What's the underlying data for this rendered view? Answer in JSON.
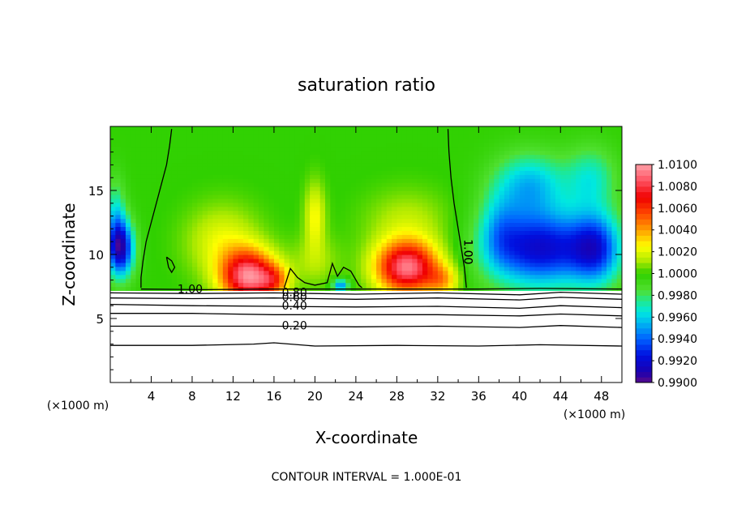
{
  "chart_data": {
    "type": "heatmap",
    "title": "saturation ratio",
    "xlabel": "X-coordinate",
    "ylabel": "Z-coordinate",
    "x_unit_left": "(×1000 m)",
    "x_unit_right": "(×1000 m)",
    "xlim": [
      0,
      50
    ],
    "ylim": [
      0,
      20
    ],
    "x_ticks": [
      4,
      8,
      12,
      16,
      20,
      24,
      28,
      32,
      36,
      40,
      44,
      48
    ],
    "x_tick_labels": [
      "4",
      "8",
      "12",
      "16",
      "20",
      "24",
      "28",
      "32",
      "36",
      "40",
      "44",
      "48"
    ],
    "y_ticks": [
      5,
      10,
      15
    ],
    "y_tick_labels": [
      "5",
      "10",
      "15"
    ],
    "colorbar": {
      "min": 0.99,
      "max": 1.01,
      "labels": [
        "1.0100",
        "1.0080",
        "1.0060",
        "1.0040",
        "1.0020",
        "1.0000",
        "0.9980",
        "0.9960",
        "0.9940",
        "0.9920",
        "0.9900"
      ],
      "stops": [
        {
          "v": 0.99,
          "color": "#5a0a8a"
        },
        {
          "v": 0.991,
          "color": "#1a00b0"
        },
        {
          "v": 0.9925,
          "color": "#0010e0"
        },
        {
          "v": 0.994,
          "color": "#0060ff"
        },
        {
          "v": 0.9955,
          "color": "#00b8f0"
        },
        {
          "v": 0.9965,
          "color": "#00e8e0"
        },
        {
          "v": 0.9975,
          "color": "#20e890"
        },
        {
          "v": 0.9985,
          "color": "#50e030"
        },
        {
          "v": 1.0,
          "color": "#30d000"
        },
        {
          "v": 1.0012,
          "color": "#b0ea00"
        },
        {
          "v": 1.0025,
          "color": "#ffff00"
        },
        {
          "v": 1.004,
          "color": "#ffa000"
        },
        {
          "v": 1.0055,
          "color": "#ff4800"
        },
        {
          "v": 1.007,
          "color": "#f00000"
        },
        {
          "v": 1.0085,
          "color": "#ff5060"
        },
        {
          "v": 1.01,
          "color": "#ffa0a8"
        }
      ]
    },
    "cloud_base_z": 7.3,
    "color_surface": {
      "background": 0.99995,
      "features": [
        {
          "x": 1.0,
          "z": 10.5,
          "sx": 1.3,
          "sz": 2.2,
          "a": -0.0085
        },
        {
          "x": 0.5,
          "z": 13.0,
          "sx": 1.0,
          "sz": 3.0,
          "a": -0.003
        },
        {
          "x": 13.5,
          "z": 8.3,
          "sx": 2.6,
          "sz": 2.0,
          "a": 0.0092
        },
        {
          "x": 11.0,
          "z": 11.0,
          "sx": 3.5,
          "sz": 2.8,
          "a": 0.0022
        },
        {
          "x": 16.0,
          "z": 8.0,
          "sx": 1.5,
          "sz": 1.2,
          "a": 0.0035
        },
        {
          "x": 20.0,
          "z": 13.0,
          "sx": 1.0,
          "sz": 2.6,
          "a": 0.0025
        },
        {
          "x": 20.0,
          "z": 9.5,
          "sx": 2.5,
          "sz": 2.0,
          "a": 0.0012
        },
        {
          "x": 22.5,
          "z": 7.6,
          "sx": 0.8,
          "sz": 0.5,
          "a": -0.0055
        },
        {
          "x": 29.0,
          "z": 9.0,
          "sx": 3.0,
          "sz": 2.0,
          "a": 0.0092
        },
        {
          "x": 29.0,
          "z": 12.5,
          "sx": 4.0,
          "sz": 2.5,
          "a": 0.0015
        },
        {
          "x": 32.5,
          "z": 8.0,
          "sx": 1.6,
          "sz": 1.2,
          "a": 0.003
        },
        {
          "x": 42.0,
          "z": 10.5,
          "sx": 5.0,
          "sz": 3.0,
          "a": -0.008
        },
        {
          "x": 47.5,
          "z": 10.5,
          "sx": 2.5,
          "sz": 2.8,
          "a": -0.006
        },
        {
          "x": 41.0,
          "z": 15.5,
          "sx": 3.5,
          "sz": 2.5,
          "a": -0.0042
        },
        {
          "x": 47.0,
          "z": 16.0,
          "sx": 2.5,
          "sz": 2.5,
          "a": -0.003
        },
        {
          "x": 38.0,
          "z": 12.0,
          "sx": 2.0,
          "sz": 3.0,
          "a": -0.0025
        }
      ]
    },
    "contours": [
      {
        "label": "1.00",
        "points": [
          [
            6.0,
            19.8
          ],
          [
            5.8,
            18.5
          ],
          [
            5.5,
            17.0
          ],
          [
            5.0,
            15.5
          ],
          [
            4.5,
            14.0
          ],
          [
            4.0,
            12.5
          ],
          [
            3.5,
            11.0
          ],
          [
            3.2,
            9.5
          ],
          [
            3.0,
            8.2
          ],
          [
            3.0,
            7.4
          ]
        ]
      },
      {
        "label": "1.00",
        "points": [
          [
            33.0,
            19.8
          ],
          [
            33.1,
            18.0
          ],
          [
            33.3,
            16.0
          ],
          [
            33.6,
            14.0
          ],
          [
            34.0,
            12.0
          ],
          [
            34.3,
            10.5
          ],
          [
            34.6,
            9.0
          ],
          [
            34.8,
            7.4
          ]
        ]
      },
      {
        "label": "",
        "points": [
          [
            5.5,
            9.8
          ],
          [
            6.0,
            9.5
          ],
          [
            6.3,
            9.0
          ],
          [
            6.0,
            8.6
          ],
          [
            5.7,
            9.0
          ],
          [
            5.5,
            9.8
          ]
        ]
      },
      {
        "label": "",
        "points": [
          [
            17.0,
            7.4
          ],
          [
            17.6,
            8.9
          ],
          [
            18.3,
            8.2
          ],
          [
            19.0,
            7.8
          ],
          [
            20.0,
            7.6
          ],
          [
            21.2,
            7.8
          ],
          [
            21.7,
            9.3
          ],
          [
            22.2,
            8.3
          ],
          [
            22.8,
            9.0
          ],
          [
            23.5,
            8.7
          ],
          [
            24.3,
            7.6
          ],
          [
            24.6,
            7.4
          ]
        ]
      },
      {
        "label": "1.00",
        "points": [
          [
            3.0,
            7.3
          ],
          [
            9.0,
            7.25
          ],
          [
            15.0,
            7.3
          ],
          [
            22.0,
            7.3
          ],
          [
            30.0,
            7.3
          ],
          [
            36.0,
            7.3
          ],
          [
            42.0,
            7.35
          ],
          [
            50.0,
            7.3
          ]
        ]
      },
      {
        "label": "0.80",
        "points": [
          [
            0.0,
            7.0
          ],
          [
            8.0,
            6.95
          ],
          [
            16.0,
            7.0
          ],
          [
            24.0,
            6.9
          ],
          [
            32.0,
            7.0
          ],
          [
            40.0,
            6.85
          ],
          [
            44.0,
            7.05
          ],
          [
            50.0,
            6.9
          ]
        ]
      },
      {
        "label": "0.60",
        "points": [
          [
            0.0,
            6.6
          ],
          [
            8.0,
            6.55
          ],
          [
            16.0,
            6.6
          ],
          [
            24.0,
            6.5
          ],
          [
            32.0,
            6.6
          ],
          [
            40.0,
            6.45
          ],
          [
            44.0,
            6.65
          ],
          [
            50.0,
            6.5
          ]
        ]
      },
      {
        "label": "0.40",
        "points": [
          [
            0.0,
            6.1
          ],
          [
            8.0,
            6.0
          ],
          [
            16.0,
            5.95
          ],
          [
            24.0,
            5.9
          ],
          [
            32.0,
            5.95
          ],
          [
            40.0,
            5.8
          ],
          [
            44.0,
            6.0
          ],
          [
            50.0,
            5.85
          ]
        ]
      },
      {
        "label": "",
        "points": [
          [
            0.0,
            5.4
          ],
          [
            8.0,
            5.4
          ],
          [
            16.0,
            5.3
          ],
          [
            24.0,
            5.3
          ],
          [
            32.0,
            5.3
          ],
          [
            40.0,
            5.2
          ],
          [
            44.0,
            5.35
          ],
          [
            50.0,
            5.2
          ]
        ]
      },
      {
        "label": "0.20",
        "points": [
          [
            0.0,
            4.4
          ],
          [
            8.0,
            4.4
          ],
          [
            16.0,
            4.4
          ],
          [
            24.0,
            4.35
          ],
          [
            32.0,
            4.4
          ],
          [
            40.0,
            4.3
          ],
          [
            44.0,
            4.45
          ],
          [
            50.0,
            4.3
          ]
        ]
      },
      {
        "label": "",
        "points": [
          [
            0.0,
            2.9
          ],
          [
            8.0,
            2.9
          ],
          [
            14.0,
            3.0
          ],
          [
            16.0,
            3.1
          ],
          [
            20.0,
            2.85
          ],
          [
            28.0,
            2.9
          ],
          [
            36.0,
            2.85
          ],
          [
            42.0,
            2.95
          ],
          [
            50.0,
            2.85
          ]
        ]
      }
    ],
    "annotation": "CONTOUR INTERVAL = 1.000E-01"
  }
}
